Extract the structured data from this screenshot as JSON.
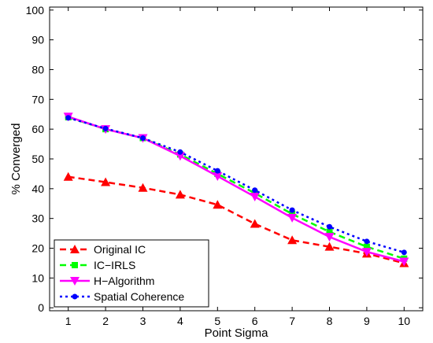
{
  "chart_data": {
    "type": "line",
    "xlabel": "Point Sigma",
    "ylabel": "% Converged",
    "xlim": [
      0.5,
      10.5
    ],
    "ylim": [
      -1,
      101
    ],
    "x": [
      1,
      2,
      3,
      4,
      5,
      6,
      7,
      8,
      9,
      10
    ],
    "xticks": [
      "1",
      "2",
      "3",
      "4",
      "5",
      "6",
      "7",
      "8",
      "9",
      "10"
    ],
    "yticks": [
      0,
      10,
      20,
      30,
      40,
      50,
      60,
      70,
      80,
      90,
      100
    ],
    "grid": false,
    "legend_position": "bottom-left",
    "series": [
      {
        "name": "Original IC",
        "color": "#ff0000",
        "marker": "triangle-up",
        "line": "dashed",
        "values": [
          44.0,
          42.2,
          40.3,
          38.0,
          34.6,
          28.2,
          22.7,
          20.5,
          18.2,
          15.0
        ]
      },
      {
        "name": "IC−IRLS",
        "color": "#00ff00",
        "marker": "square",
        "line": "dashed",
        "values": [
          64.0,
          60.0,
          57.0,
          51.5,
          45.0,
          38.5,
          31.5,
          25.5,
          20.5,
          16.5
        ]
      },
      {
        "name": "H−Algorithm",
        "color": "#ff00ff",
        "marker": "triangle-down",
        "line": "solid",
        "values": [
          64.2,
          60.0,
          57.0,
          51.0,
          44.2,
          37.3,
          30.2,
          23.8,
          18.8,
          15.5
        ]
      },
      {
        "name": "Spatial Coherence",
        "color": "#0000ff",
        "marker": "dot",
        "line": "dotted",
        "values": [
          63.8,
          60.2,
          57.0,
          52.3,
          46.0,
          39.5,
          32.8,
          27.2,
          22.3,
          18.6
        ]
      }
    ]
  }
}
